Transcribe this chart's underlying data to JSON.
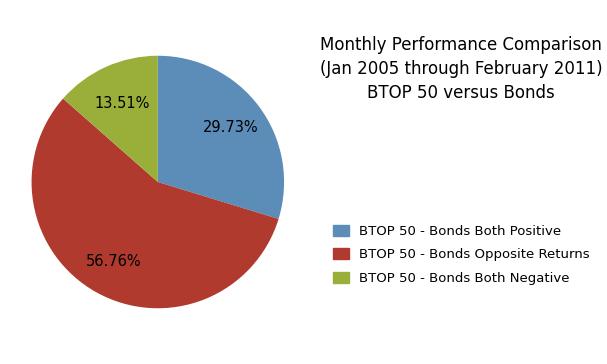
{
  "title": "Monthly Performance Comparison\n(Jan 2005 through February 2011)\nBTOP 50 versus Bonds",
  "slices": [
    29.73,
    56.76,
    13.51
  ],
  "colors": [
    "#5b8db8",
    "#b03a2e",
    "#9aaf3a"
  ],
  "labels": [
    "BTOP 50 - Bonds Both Positive",
    "BTOP 50 - Bonds Opposite Returns",
    "BTOP 50 - Bonds Both Negative"
  ],
  "autopct_values": [
    "29.73%",
    "56.76%",
    "13.51%"
  ],
  "startangle": 90,
  "background_color": "#ffffff",
  "title_fontsize": 12,
  "legend_fontsize": 9.5,
  "autopct_fontsize": 10.5
}
